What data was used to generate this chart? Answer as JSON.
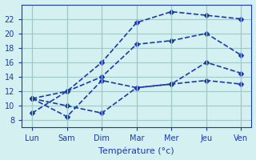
{
  "days": [
    "Lun",
    "Sam",
    "Dim",
    "Mar",
    "Mer",
    "Jeu",
    "Ven"
  ],
  "x_positions": [
    0,
    1,
    2,
    3,
    4,
    5,
    6
  ],
  "series": [
    [
      9.0,
      12.0,
      16.0,
      21.5,
      23.0,
      22.5,
      22.0
    ],
    [
      11.0,
      12.0,
      14.0,
      18.5,
      19.0,
      20.0,
      17.0
    ],
    [
      11.0,
      8.5,
      13.5,
      12.5,
      13.0,
      16.0,
      14.5
    ],
    [
      11.0,
      10.0,
      9.0,
      12.5,
      13.0,
      13.5,
      13.0
    ]
  ],
  "line_color": "#1a3aab",
  "marker": "D",
  "marker_size": 3,
  "line_width": 1.2,
  "background_color": "#d4f0f0",
  "grid_color": "#a0c8c8",
  "xlabel": "Température (°c)",
  "ylim": [
    7,
    24
  ],
  "yticks": [
    8,
    10,
    12,
    14,
    16,
    18,
    20,
    22
  ],
  "title_fontsize": 9,
  "axis_fontsize": 8,
  "tick_fontsize": 7
}
